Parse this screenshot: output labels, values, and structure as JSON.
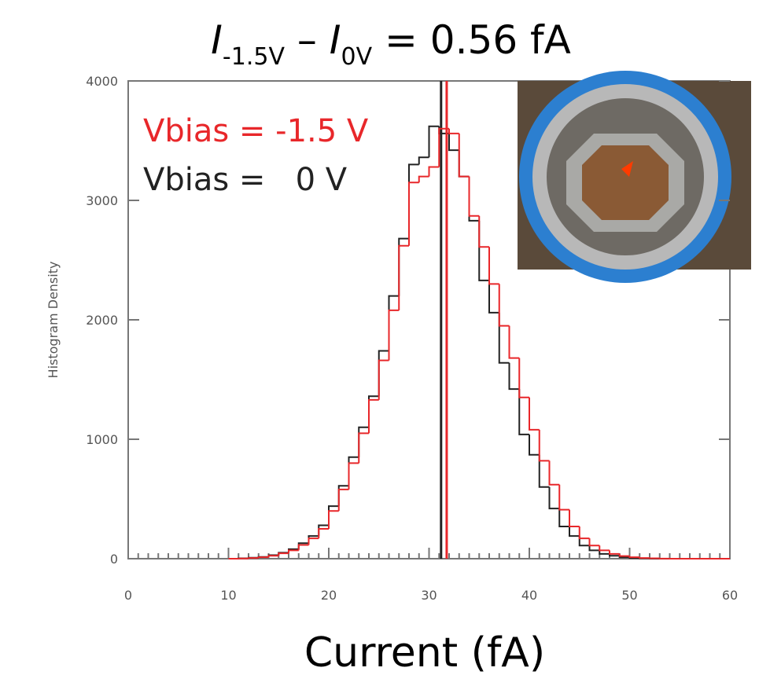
{
  "chart_data": {
    "type": "histogram",
    "title": [
      "I",
      "-1.5V",
      " – ",
      "I",
      "0V",
      " = 0.56 fA"
    ],
    "xlabel": "Current (fA)",
    "ylabel": "Histogram Density",
    "xlim": [
      0,
      60
    ],
    "xticks": [
      0,
      10,
      20,
      30,
      40,
      50,
      60
    ],
    "ylim": [
      0,
      4000
    ],
    "yticks": [
      0,
      1000,
      2000,
      3000,
      4000
    ],
    "bins": [
      10,
      11,
      12,
      13,
      14,
      15,
      16,
      17,
      18,
      19,
      20,
      21,
      22,
      23,
      24,
      25,
      26,
      27,
      28,
      29,
      30,
      31,
      32,
      33,
      34,
      35,
      36,
      37,
      38,
      39,
      40,
      41,
      42,
      43,
      44,
      45,
      46,
      47,
      48,
      49,
      50,
      51,
      52,
      53,
      54,
      55,
      56,
      57,
      58,
      59,
      60
    ],
    "series": [
      {
        "name": "Vbias =   0 V",
        "color": "#222222",
        "mean": 31.2,
        "values": [
          0,
          3,
          8,
          15,
          30,
          50,
          80,
          130,
          190,
          280,
          440,
          610,
          850,
          1100,
          1360,
          1740,
          2200,
          2680,
          3300,
          3360,
          3620,
          3560,
          3420,
          3200,
          2830,
          2330,
          2060,
          1640,
          1420,
          1040,
          870,
          600,
          420,
          270,
          190,
          110,
          70,
          40,
          25,
          12,
          6,
          3,
          1,
          0,
          0,
          0,
          0,
          0,
          0,
          0
        ]
      },
      {
        "name": "Vbias = -1.5 V",
        "color": "#e8272a",
        "mean": 31.76,
        "values": [
          0,
          2,
          6,
          12,
          25,
          45,
          70,
          115,
          170,
          250,
          400,
          580,
          800,
          1050,
          1330,
          1660,
          2080,
          2620,
          3150,
          3200,
          3280,
          3600,
          3560,
          3200,
          2870,
          2610,
          2300,
          1950,
          1680,
          1350,
          1080,
          820,
          620,
          410,
          270,
          170,
          110,
          70,
          40,
          22,
          12,
          6,
          3,
          1,
          0,
          0,
          0,
          0,
          0,
          0
        ]
      }
    ]
  }
}
